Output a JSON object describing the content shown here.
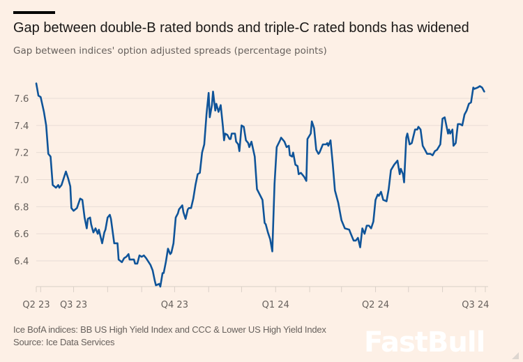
{
  "header": {
    "title": "Gap between double-B rated bonds and triple-C rated bonds has widened",
    "subtitle": "Gap between indices' option adjusted spreads (percentage points)"
  },
  "footer": {
    "note": "Ice BofA indices: BB US High Yield Index and CCC & Lower US High Yield Index",
    "source": "Source: Ice Data Services"
  },
  "watermark": "FastBull",
  "colors": {
    "background": "#fdf0e6",
    "line": "#0f5499",
    "grid": "#e8ddd5",
    "axis_text": "#66605c"
  },
  "chart_data": {
    "type": "line",
    "title": "Gap between double-B rated bonds and triple-C rated bonds has widened",
    "subtitle": "Gap between indices' option adjusted spreads (percentage points)",
    "xlabel": "",
    "ylabel": "",
    "grid": true,
    "xlim": [
      "2023-05-28",
      "2024-07-10"
    ],
    "ylim": [
      6.21,
      7.72
    ],
    "yticks": [
      6.4,
      6.6,
      6.8,
      7.0,
      7.2,
      7.4,
      7.6
    ],
    "ytick_labels": [
      "6.4",
      "6.6",
      "6.8",
      "7.0",
      "7.2",
      "7.4",
      "7.6"
    ],
    "xtick_labels": [
      {
        "label": "Q2 23",
        "date": "2023-05-28"
      },
      {
        "label": "Q3 23",
        "date": "2023-07-01"
      },
      {
        "label": "Q4 23",
        "date": "2023-10-01"
      },
      {
        "label": "Q1 24",
        "date": "2024-01-01"
      },
      {
        "label": "Q2 24",
        "date": "2024-04-01"
      },
      {
        "label": "Q3 24",
        "date": "2024-07-01"
      }
    ],
    "minor_ticks": [
      "2023-05-28",
      "2023-06-01",
      "2023-07-01",
      "2023-08-01",
      "2023-09-01",
      "2023-10-01",
      "2023-11-01",
      "2023-12-01",
      "2024-01-01",
      "2024-02-01",
      "2024-03-01",
      "2024-04-01",
      "2024-05-01",
      "2024-06-01",
      "2024-07-01",
      "2024-07-10"
    ],
    "series": [
      {
        "points": [
          [
            "2023-05-28",
            7.71
          ],
          [
            "2023-05-30",
            7.62
          ],
          [
            "2023-06-01",
            7.61
          ],
          [
            "2023-06-04",
            7.5
          ],
          [
            "2023-06-06",
            7.4
          ],
          [
            "2023-06-08",
            7.19
          ],
          [
            "2023-06-10",
            7.17
          ],
          [
            "2023-06-12",
            6.96
          ],
          [
            "2023-06-15",
            6.94
          ],
          [
            "2023-06-17",
            6.96
          ],
          [
            "2023-06-18",
            6.94
          ],
          [
            "2023-06-20",
            6.96
          ],
          [
            "2023-06-24",
            7.06
          ],
          [
            "2023-06-26",
            7.01
          ],
          [
            "2023-06-28",
            6.95
          ],
          [
            "2023-06-29",
            6.79
          ],
          [
            "2023-07-01",
            6.77
          ],
          [
            "2023-07-04",
            6.79
          ],
          [
            "2023-07-07",
            6.86
          ],
          [
            "2023-07-09",
            6.85
          ],
          [
            "2023-07-11",
            6.72
          ],
          [
            "2023-07-13",
            6.64
          ],
          [
            "2023-07-14",
            6.71
          ],
          [
            "2023-07-16",
            6.72
          ],
          [
            "2023-07-17",
            6.67
          ],
          [
            "2023-07-19",
            6.61
          ],
          [
            "2023-07-21",
            6.64
          ],
          [
            "2023-07-23",
            6.6
          ],
          [
            "2023-07-24",
            6.63
          ],
          [
            "2023-07-27",
            6.53
          ],
          [
            "2023-07-29",
            6.61
          ],
          [
            "2023-07-30",
            6.63
          ],
          [
            "2023-08-01",
            6.72
          ],
          [
            "2023-08-03",
            6.74
          ],
          [
            "2023-08-04",
            6.71
          ],
          [
            "2023-08-07",
            6.53
          ],
          [
            "2023-08-10",
            6.53
          ],
          [
            "2023-08-11",
            6.41
          ],
          [
            "2023-08-14",
            6.39
          ],
          [
            "2023-08-16",
            6.42
          ],
          [
            "2023-08-18",
            6.43
          ],
          [
            "2023-08-20",
            6.45
          ],
          [
            "2023-08-21",
            6.41
          ],
          [
            "2023-08-25",
            6.41
          ],
          [
            "2023-08-26",
            6.38
          ],
          [
            "2023-08-28",
            6.38
          ],
          [
            "2023-08-30",
            6.44
          ],
          [
            "2023-09-01",
            6.43
          ],
          [
            "2023-09-03",
            6.44
          ],
          [
            "2023-09-05",
            6.42
          ],
          [
            "2023-09-09",
            6.37
          ],
          [
            "2023-09-11",
            6.33
          ],
          [
            "2023-09-13",
            6.25
          ],
          [
            "2023-09-14",
            6.22
          ],
          [
            "2023-09-17",
            6.23
          ],
          [
            "2023-09-18",
            6.21
          ],
          [
            "2023-09-20",
            6.31
          ],
          [
            "2023-09-21",
            6.31
          ],
          [
            "2023-09-23",
            6.39
          ],
          [
            "2023-09-25",
            6.49
          ],
          [
            "2023-09-27",
            6.45
          ],
          [
            "2023-09-28",
            6.46
          ],
          [
            "2023-09-30",
            6.53
          ],
          [
            "2023-10-02",
            6.72
          ],
          [
            "2023-10-04",
            6.75
          ],
          [
            "2023-10-05",
            6.78
          ],
          [
            "2023-10-08",
            6.81
          ],
          [
            "2023-10-09",
            6.76
          ],
          [
            "2023-10-11",
            6.71
          ],
          [
            "2023-10-13",
            6.78
          ],
          [
            "2023-10-14",
            6.79
          ],
          [
            "2023-10-16",
            6.79
          ],
          [
            "2023-10-18",
            6.86
          ],
          [
            "2023-10-20",
            6.96
          ],
          [
            "2023-10-22",
            7.04
          ],
          [
            "2023-10-24",
            7.05
          ],
          [
            "2023-10-26",
            7.2
          ],
          [
            "2023-10-28",
            7.26
          ],
          [
            "2023-10-30",
            7.48
          ],
          [
            "2023-11-01",
            7.64
          ],
          [
            "2023-11-02",
            7.46
          ],
          [
            "2023-11-04",
            7.55
          ],
          [
            "2023-11-05",
            7.65
          ],
          [
            "2023-11-07",
            7.51
          ],
          [
            "2023-11-08",
            7.56
          ],
          [
            "2023-11-10",
            7.5
          ],
          [
            "2023-11-12",
            7.55
          ],
          [
            "2023-11-14",
            7.39
          ],
          [
            "2023-11-15",
            7.29
          ],
          [
            "2023-11-16",
            7.34
          ],
          [
            "2023-11-18",
            7.33
          ],
          [
            "2023-11-20",
            7.3
          ],
          [
            "2023-11-21",
            7.3
          ],
          [
            "2023-11-22",
            7.34
          ],
          [
            "2023-11-25",
            7.34
          ],
          [
            "2023-11-26",
            7.28
          ],
          [
            "2023-11-28",
            7.26
          ],
          [
            "2023-11-29",
            7.21
          ],
          [
            "2023-12-01",
            7.4
          ],
          [
            "2023-12-03",
            7.39
          ],
          [
            "2023-12-05",
            7.29
          ],
          [
            "2023-12-07",
            7.27
          ],
          [
            "2023-12-08",
            7.24
          ],
          [
            "2023-12-10",
            7.28
          ],
          [
            "2023-12-13",
            7.17
          ],
          [
            "2023-12-15",
            6.93
          ],
          [
            "2023-12-20",
            6.85
          ],
          [
            "2023-12-22",
            6.68
          ],
          [
            "2023-12-23",
            6.67
          ],
          [
            "2023-12-25",
            6.61
          ],
          [
            "2023-12-27",
            6.56
          ],
          [
            "2023-12-29",
            6.47
          ],
          [
            "2023-12-31",
            6.97
          ],
          [
            "2024-01-02",
            7.24
          ],
          [
            "2024-01-05",
            7.29
          ],
          [
            "2024-01-06",
            7.31
          ],
          [
            "2024-01-09",
            7.28
          ],
          [
            "2024-01-11",
            7.24
          ],
          [
            "2024-01-13",
            7.25
          ],
          [
            "2024-01-14",
            7.18
          ],
          [
            "2024-01-16",
            7.17
          ],
          [
            "2024-01-17",
            7.2
          ],
          [
            "2024-01-19",
            7.11
          ],
          [
            "2024-01-21",
            7.1
          ],
          [
            "2024-01-22",
            7.04
          ],
          [
            "2024-01-24",
            7.05
          ],
          [
            "2024-01-27",
            7.02
          ],
          [
            "2024-01-29",
            6.99
          ],
          [
            "2024-01-30",
            7.3
          ],
          [
            "2024-02-02",
            7.34
          ],
          [
            "2024-02-03",
            7.43
          ],
          [
            "2024-02-05",
            7.38
          ],
          [
            "2024-02-07",
            7.22
          ],
          [
            "2024-02-09",
            7.19
          ],
          [
            "2024-02-10",
            7.2
          ],
          [
            "2024-02-13",
            7.26
          ],
          [
            "2024-02-16",
            7.26
          ],
          [
            "2024-02-17",
            7.27
          ],
          [
            "2024-02-18",
            7.25
          ],
          [
            "2024-02-20",
            7.29
          ],
          [
            "2024-02-22",
            7.12
          ],
          [
            "2024-02-24",
            6.92
          ],
          [
            "2024-02-27",
            6.83
          ],
          [
            "2024-03-01",
            6.7
          ],
          [
            "2024-03-04",
            6.64
          ],
          [
            "2024-03-08",
            6.63
          ],
          [
            "2024-03-09",
            6.61
          ],
          [
            "2024-03-12",
            6.55
          ],
          [
            "2024-03-14",
            6.55
          ],
          [
            "2024-03-16",
            6.57
          ],
          [
            "2024-03-18",
            6.5
          ],
          [
            "2024-03-20",
            6.64
          ],
          [
            "2024-03-22",
            6.6
          ],
          [
            "2024-03-24",
            6.66
          ],
          [
            "2024-03-26",
            6.66
          ],
          [
            "2024-03-28",
            6.64
          ],
          [
            "2024-03-30",
            6.69
          ],
          [
            "2024-04-01",
            6.85
          ],
          [
            "2024-04-03",
            6.89
          ],
          [
            "2024-04-04",
            6.88
          ],
          [
            "2024-04-06",
            6.91
          ],
          [
            "2024-04-08",
            6.85
          ],
          [
            "2024-04-11",
            6.84
          ],
          [
            "2024-04-13",
            6.93
          ],
          [
            "2024-04-15",
            7.07
          ],
          [
            "2024-04-18",
            7.11
          ],
          [
            "2024-04-21",
            7.14
          ],
          [
            "2024-04-23",
            7.04
          ],
          [
            "2024-04-24",
            7.08
          ],
          [
            "2024-04-26",
            7.04
          ],
          [
            "2024-04-27",
            6.98
          ],
          [
            "2024-04-29",
            7.31
          ],
          [
            "2024-04-30",
            7.34
          ],
          [
            "2024-05-02",
            7.26
          ],
          [
            "2024-05-04",
            7.27
          ],
          [
            "2024-05-07",
            7.37
          ],
          [
            "2024-05-09",
            7.37
          ],
          [
            "2024-05-10",
            7.39
          ],
          [
            "2024-05-12",
            7.37
          ],
          [
            "2024-05-14",
            7.25
          ],
          [
            "2024-05-16",
            7.22
          ],
          [
            "2024-05-18",
            7.19
          ],
          [
            "2024-05-21",
            7.19
          ],
          [
            "2024-05-23",
            7.18
          ],
          [
            "2024-05-25",
            7.21
          ],
          [
            "2024-05-27",
            7.22
          ],
          [
            "2024-05-30",
            7.26
          ],
          [
            "2024-06-01",
            7.45
          ],
          [
            "2024-06-03",
            7.46
          ],
          [
            "2024-06-04",
            7.42
          ],
          [
            "2024-06-06",
            7.34
          ],
          [
            "2024-06-07",
            7.37
          ],
          [
            "2024-06-08",
            7.34
          ],
          [
            "2024-06-10",
            7.37
          ],
          [
            "2024-06-11",
            7.25
          ],
          [
            "2024-06-13",
            7.27
          ],
          [
            "2024-06-15",
            7.41
          ],
          [
            "2024-06-17",
            7.41
          ],
          [
            "2024-06-19",
            7.4
          ],
          [
            "2024-06-21",
            7.48
          ],
          [
            "2024-06-23",
            7.51
          ],
          [
            "2024-06-25",
            7.56
          ],
          [
            "2024-06-27",
            7.57
          ],
          [
            "2024-06-29",
            7.68
          ],
          [
            "2024-06-30",
            7.67
          ],
          [
            "2024-07-03",
            7.68
          ],
          [
            "2024-07-05",
            7.69
          ],
          [
            "2024-07-07",
            7.68
          ],
          [
            "2024-07-09",
            7.65
          ]
        ]
      }
    ]
  }
}
